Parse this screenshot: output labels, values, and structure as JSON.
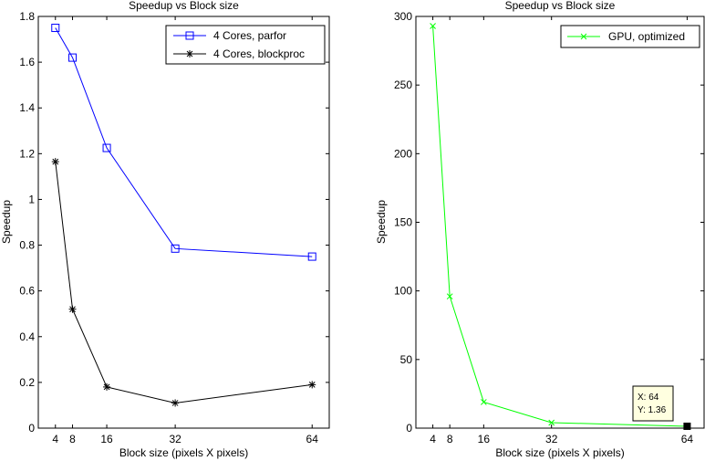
{
  "chart_data": [
    {
      "type": "line",
      "title": "Speedup vs Block size",
      "xlabel": "Block size (pixels X pixels)",
      "ylabel": "Speedup",
      "xlim": [
        0,
        68
      ],
      "ylim": [
        0,
        1.8
      ],
      "x_ticks": [
        4,
        8,
        16,
        32,
        64
      ],
      "y_ticks": [
        0,
        0.2,
        0.4,
        0.6,
        0.8,
        1,
        1.2,
        1.4,
        1.6,
        1.8
      ],
      "legend_position": "top-right",
      "series": [
        {
          "name": "4 Cores, parfor",
          "color": "#0000ff",
          "marker": "square",
          "x": [
            4,
            8,
            16,
            32,
            64
          ],
          "y": [
            1.75,
            1.62,
            1.225,
            0.785,
            0.75
          ]
        },
        {
          "name": "4 Cores, blockproc",
          "color": "#000000",
          "marker": "asterisk",
          "x": [
            4,
            8,
            16,
            32,
            64
          ],
          "y": [
            1.165,
            0.52,
            0.18,
            0.11,
            0.19
          ]
        }
      ]
    },
    {
      "type": "line",
      "title": "Speedup vs Block size",
      "xlabel": "Block size (pixels X pixels)",
      "ylabel": "Speedup",
      "xlim": [
        0,
        68
      ],
      "ylim": [
        0,
        300
      ],
      "x_ticks": [
        4,
        8,
        16,
        32,
        64
      ],
      "y_ticks": [
        0,
        50,
        100,
        150,
        200,
        250,
        300
      ],
      "legend_position": "top-right",
      "series": [
        {
          "name": "GPU, optimized",
          "color": "#00ff00",
          "marker": "x",
          "x": [
            4,
            8,
            16,
            32,
            64
          ],
          "y": [
            293,
            96,
            19,
            4,
            1.36
          ]
        }
      ],
      "datatip": {
        "x_text": "X: 64",
        "y_text": "Y: 1.36",
        "x": 64,
        "y": 1.36
      }
    }
  ]
}
